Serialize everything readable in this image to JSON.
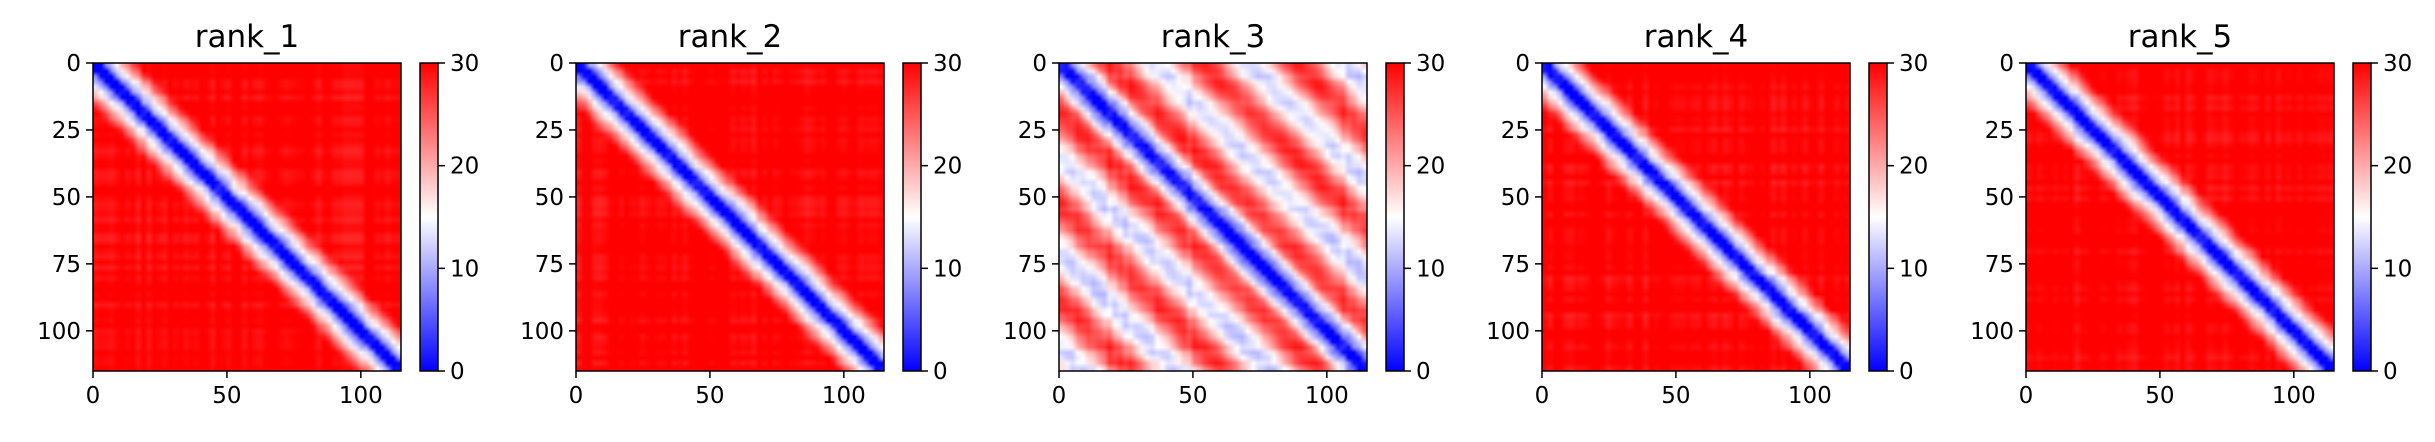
{
  "chart_data": [
    {
      "type": "heatmap",
      "title": "rank_1",
      "pattern": "single-diagonal",
      "xlim": [
        0,
        115
      ],
      "ylim": [
        115,
        0
      ],
      "xticks": [
        0,
        50,
        100
      ],
      "yticks": [
        0,
        25,
        50,
        75,
        100
      ],
      "colorbar": {
        "min": 0,
        "max": 30,
        "ticks": [
          0,
          10,
          20,
          30
        ],
        "colormap": "bwr"
      }
    },
    {
      "type": "heatmap",
      "title": "rank_2",
      "pattern": "single-diagonal",
      "xlim": [
        0,
        115
      ],
      "ylim": [
        115,
        0
      ],
      "xticks": [
        0,
        50,
        100
      ],
      "yticks": [
        0,
        25,
        50,
        75,
        100
      ],
      "colorbar": {
        "min": 0,
        "max": 30,
        "ticks": [
          0,
          10,
          20,
          30
        ],
        "colormap": "bwr"
      }
    },
    {
      "type": "heatmap",
      "title": "rank_3",
      "pattern": "banded-diagonal",
      "xlim": [
        0,
        115
      ],
      "ylim": [
        115,
        0
      ],
      "xticks": [
        0,
        50,
        100
      ],
      "yticks": [
        0,
        25,
        50,
        75,
        100
      ],
      "colorbar": {
        "min": 0,
        "max": 30,
        "ticks": [
          0,
          10,
          20,
          30
        ],
        "colormap": "bwr"
      }
    },
    {
      "type": "heatmap",
      "title": "rank_4",
      "pattern": "single-diagonal",
      "xlim": [
        0,
        115
      ],
      "ylim": [
        115,
        0
      ],
      "xticks": [
        0,
        50,
        100
      ],
      "yticks": [
        0,
        25,
        50,
        75,
        100
      ],
      "colorbar": {
        "min": 0,
        "max": 30,
        "ticks": [
          0,
          10,
          20,
          30
        ],
        "colormap": "bwr"
      }
    },
    {
      "type": "heatmap",
      "title": "rank_5",
      "pattern": "single-diagonal",
      "xlim": [
        0,
        115
      ],
      "ylim": [
        115,
        0
      ],
      "xticks": [
        0,
        50,
        100
      ],
      "yticks": [
        0,
        25,
        50,
        75,
        100
      ],
      "colorbar": {
        "min": 0,
        "max": 30,
        "ticks": [
          0,
          10,
          20,
          30
        ],
        "colormap": "bwr"
      }
    }
  ],
  "colors": {
    "low": "#0000ff",
    "mid": "#ffffff",
    "high": "#ff0000"
  }
}
